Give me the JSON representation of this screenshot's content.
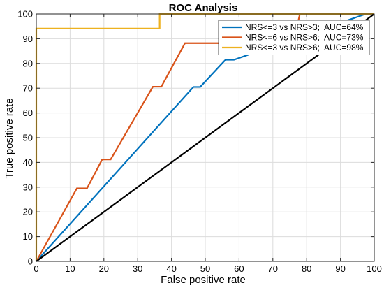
{
  "chart_data": {
    "type": "line",
    "title": "ROC Analysis",
    "xlabel": "False positive rate",
    "ylabel": "True positive rate",
    "xlim": [
      0,
      100
    ],
    "ylim": [
      0,
      100
    ],
    "xticks": [
      0,
      10,
      20,
      30,
      40,
      50,
      60,
      70,
      80,
      90,
      100
    ],
    "yticks": [
      0,
      10,
      20,
      30,
      40,
      50,
      60,
      70,
      80,
      90,
      100
    ],
    "grid": true,
    "legend_position": "top-right",
    "series": [
      {
        "name": "NRS<=3 vs NRS>3;  AUC=64%",
        "color": "#0072BD",
        "x": [
          0,
          46.5,
          48.5,
          56,
          58.5,
          97.5,
          100
        ],
        "y": [
          0,
          70.5,
          70.5,
          81.5,
          81.5,
          100,
          100
        ]
      },
      {
        "name": "NRS<=6 vs NRS>6;  AUC=73%",
        "color": "#D95319",
        "x": [
          0,
          12,
          15,
          19.5,
          22,
          34.5,
          37,
          44,
          76,
          78,
          100
        ],
        "y": [
          0,
          29.5,
          29.5,
          41.2,
          41.2,
          70.6,
          70.6,
          88.2,
          88.2,
          100,
          100
        ]
      },
      {
        "name": "NRS<=3 vs NRS>6;  AUC=98%",
        "color": "#EDB120",
        "x": [
          0,
          0,
          36.5,
          36.5,
          100
        ],
        "y": [
          0,
          94.1,
          94.1,
          100,
          100
        ]
      },
      {
        "name": "",
        "color": "#000000",
        "x": [
          0,
          100
        ],
        "y": [
          0,
          100
        ]
      }
    ]
  }
}
